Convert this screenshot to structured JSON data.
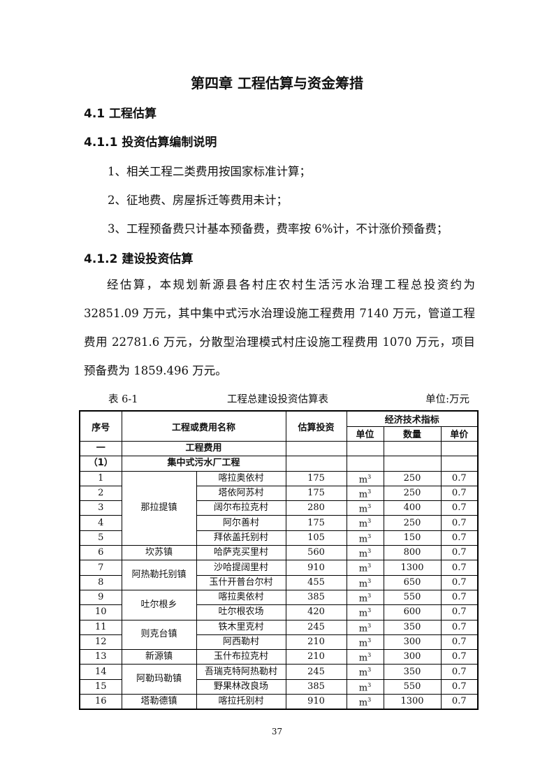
{
  "title": "第四章  工程估算与资金筹措",
  "h1": "4.1 工程估算",
  "h2": "4.1.1 投资估算编制说明",
  "notes": [
    "1、相关工程二类费用按国家标准计算；",
    "2、征地费、房屋拆迁等费用未计；",
    "3、工程预备费只计基本预备费，费率按 6%计，不计涨价预备费；"
  ],
  "h3": "4.1.2 建设投资估算",
  "paragraph": "经估算，本规划新源县各村庄农村生活污水治理工程总投资约为32851.09 万元，其中集中式污水治理设施工程费用 7140 万元，管道工程费用 22781.6 万元，分散型治理模式村庄设施工程费用 1070 万元，项目预备费为 1859.496 万元。",
  "table": {
    "number": "表 6-1",
    "caption": "工程总建设投资估算表",
    "unit_note": "单位:万元",
    "headers": {
      "no": "序号",
      "name": "工程或费用名称",
      "invest": "估算投资",
      "indicators": "经济技术指标",
      "unit": "单位",
      "qty": "数量",
      "price": "单价"
    },
    "sections": [
      {
        "no": "一",
        "name": "工程费用"
      },
      {
        "no": "（1）",
        "name": "集中式污水厂工程"
      }
    ],
    "rows": [
      {
        "no": "1",
        "town": "那拉提镇",
        "village": "喀拉奥依村",
        "invest": "175",
        "unit": "m",
        "qty": "250",
        "price": "0.7"
      },
      {
        "no": "2",
        "town": "那拉提镇",
        "village": "塔依阿苏村",
        "invest": "175",
        "unit": "m",
        "qty": "250",
        "price": "0.7"
      },
      {
        "no": "3",
        "town": "那拉提镇",
        "village": "阔尔布拉克村",
        "invest": "280",
        "unit": "m",
        "qty": "400",
        "price": "0.7"
      },
      {
        "no": "4",
        "town": "那拉提镇",
        "village": "阿尔善村",
        "invest": "175",
        "unit": "m",
        "qty": "250",
        "price": "0.7"
      },
      {
        "no": "5",
        "town": "那拉提镇",
        "village": "拜依盖托别村",
        "invest": "105",
        "unit": "m",
        "qty": "150",
        "price": "0.7"
      },
      {
        "no": "6",
        "town": "坎苏镇",
        "village": "哈萨克买里村",
        "invest": "560",
        "unit": "m",
        "qty": "800",
        "price": "0.7"
      },
      {
        "no": "7",
        "town": "阿热勒托别镇",
        "village": "沙哈提阔里村",
        "invest": "910",
        "unit": "m",
        "qty": "1300",
        "price": "0.7"
      },
      {
        "no": "8",
        "town": "阿热勒托别镇",
        "village": "玉什开普台尔村",
        "invest": "455",
        "unit": "m",
        "qty": "650",
        "price": "0.7"
      },
      {
        "no": "9",
        "town": "吐尔根乡",
        "village": "喀拉奥依村",
        "invest": "385",
        "unit": "m",
        "qty": "550",
        "price": "0.7"
      },
      {
        "no": "10",
        "town": "吐尔根乡",
        "village": "吐尔根农场",
        "invest": "420",
        "unit": "m",
        "qty": "600",
        "price": "0.7"
      },
      {
        "no": "11",
        "town": "则克台镇",
        "village": "铁木里克村",
        "invest": "245",
        "unit": "m",
        "qty": "350",
        "price": "0.7"
      },
      {
        "no": "12",
        "town": "则克台镇",
        "village": "阿西勒村",
        "invest": "210",
        "unit": "m",
        "qty": "300",
        "price": "0.7"
      },
      {
        "no": "13",
        "town": "新源镇",
        "village": "玉什布拉克村",
        "invest": "210",
        "unit": "m",
        "qty": "300",
        "price": "0.7"
      },
      {
        "no": "14",
        "town": "阿勒玛勒镇",
        "village": "吾瑞克特阿热勒村",
        "invest": "245",
        "unit": "m",
        "qty": "350",
        "price": "0.7"
      },
      {
        "no": "15",
        "town": "阿勒玛勒镇",
        "village": "野果林改良场",
        "invest": "385",
        "unit": "m",
        "qty": "550",
        "price": "0.7"
      },
      {
        "no": "16",
        "town": "塔勒德镇",
        "village": "喀拉托别村",
        "invest": "910",
        "unit": "m",
        "qty": "1300",
        "price": "0.7"
      }
    ],
    "unit_superscript": "3"
  },
  "page_number": "37"
}
